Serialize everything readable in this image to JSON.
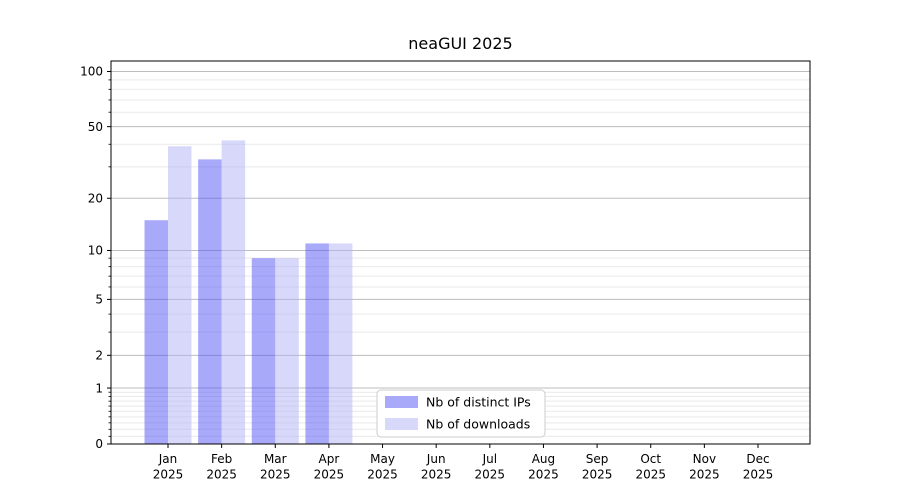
{
  "chart_data": {
    "type": "bar",
    "title": "neaGUI 2025",
    "categories": [
      "Jan",
      "Feb",
      "Mar",
      "Apr",
      "May",
      "Jun",
      "Jul",
      "Aug",
      "Sep",
      "Oct",
      "Nov",
      "Dec"
    ],
    "category_year": "2025",
    "series": [
      {
        "name": "Nb of distinct IPs",
        "display_color": "#a9a9fa",
        "base_color": "#5353f5",
        "alpha": 0.5,
        "values": [
          15,
          33,
          9,
          11,
          0,
          0,
          0,
          0,
          0,
          0,
          0,
          0
        ]
      },
      {
        "name": "Nb of downloads",
        "display_color": "#d8d8fa",
        "base_color": "#b1b1f7",
        "alpha": 0.5,
        "values": [
          39,
          42,
          9,
          11,
          0,
          0,
          0,
          0,
          0,
          0,
          0,
          0
        ]
      }
    ],
    "yscale": "log1p",
    "ylim": [
      0,
      114
    ],
    "y_major_ticks": [
      100,
      50,
      20,
      10,
      5,
      2,
      1,
      0
    ],
    "y_minor_ticks": [
      90,
      80,
      70,
      60,
      40,
      30,
      9,
      8,
      7,
      6,
      4,
      3,
      0.9,
      0.8,
      0.7,
      0.6,
      0.5,
      0.4,
      0.3,
      0.2,
      0.1
    ],
    "grid": true,
    "xlabel": "",
    "ylabel": "",
    "legend": {
      "position": "lower-center",
      "entries": [
        "Nb of distinct IPs",
        "Nb of downloads"
      ]
    }
  },
  "colors": {
    "background": "#ffffff",
    "spine": "#000000",
    "major_grid": "#bdbdbd",
    "minor_grid": "#e9e9e9",
    "legend_border": "#cccccc",
    "legend_bg": "#ffffff",
    "tick_label": "#000000"
  }
}
